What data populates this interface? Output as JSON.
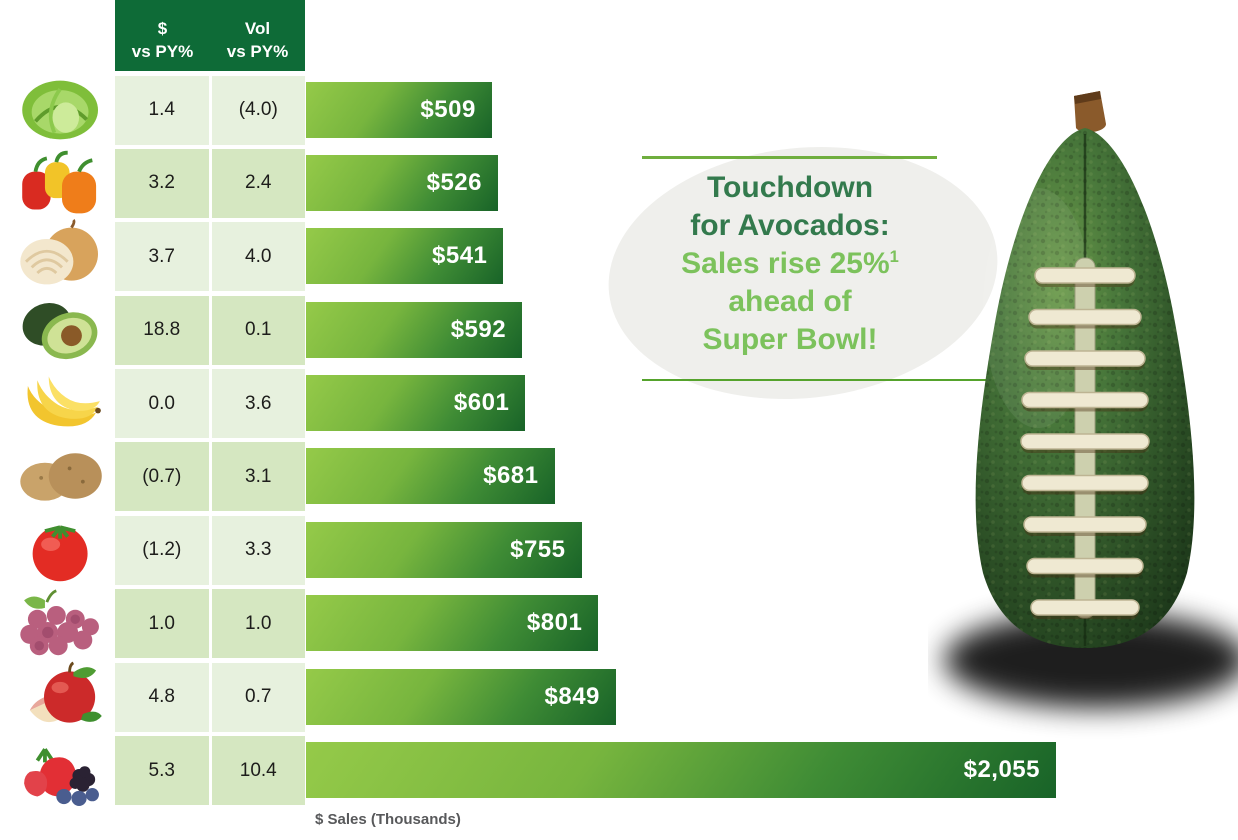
{
  "header": {
    "col1": "$\nvs PY%",
    "col2": "Vol\nvs PY%"
  },
  "rows": [
    {
      "produce": "lettuce",
      "dollar": "1.4",
      "vol": "(4.0)",
      "sales": "$509",
      "value": 509
    },
    {
      "produce": "bell-peppers",
      "dollar": "3.2",
      "vol": "2.4",
      "sales": "$526",
      "value": 526
    },
    {
      "produce": "onion",
      "dollar": "3.7",
      "vol": "4.0",
      "sales": "$541",
      "value": 541
    },
    {
      "produce": "avocado",
      "dollar": "18.8",
      "vol": "0.1",
      "sales": "$592",
      "value": 592
    },
    {
      "produce": "bananas",
      "dollar": "0.0",
      "vol": "3.6",
      "sales": "$601",
      "value": 601
    },
    {
      "produce": "potatoes",
      "dollar": "(0.7)",
      "vol": "3.1",
      "sales": "$681",
      "value": 681
    },
    {
      "produce": "tomato",
      "dollar": "(1.2)",
      "vol": "3.3",
      "sales": "$755",
      "value": 755
    },
    {
      "produce": "grapes",
      "dollar": "1.0",
      "vol": "1.0",
      "sales": "$801",
      "value": 801
    },
    {
      "produce": "apple",
      "dollar": "4.8",
      "vol": "0.7",
      "sales": "$849",
      "value": 849
    },
    {
      "produce": "berries",
      "dollar": "5.3",
      "vol": "10.4",
      "sales": "$2,055",
      "value": 2055
    }
  ],
  "axis_label": "$ Sales (Thousands)",
  "callout": {
    "line1": "Touchdown",
    "line2": "for Avocados:",
    "line3_main": "Sales rise 25%",
    "line3_sup": "1",
    "line4": "ahead of",
    "line5": "Super Bowl!"
  },
  "chart_data": {
    "type": "bar",
    "orientation": "horizontal",
    "title": "",
    "xlabel": "$ Sales (Thousands)",
    "categories": [
      "lettuce",
      "bell peppers",
      "onions",
      "avocados",
      "bananas",
      "potatoes",
      "tomatoes",
      "grapes",
      "apples",
      "berries"
    ],
    "series": [
      {
        "name": "$ Sales (Thousands)",
        "values": [
          509,
          526,
          541,
          592,
          601,
          681,
          755,
          801,
          849,
          2055
        ]
      },
      {
        "name": "$ vs PY%",
        "values": [
          1.4,
          3.2,
          3.7,
          18.8,
          0.0,
          -0.7,
          -1.2,
          1.0,
          4.8,
          5.3
        ]
      },
      {
        "name": "Vol vs PY%",
        "values": [
          -4.0,
          2.4,
          4.0,
          0.1,
          3.6,
          3.1,
          3.3,
          1.0,
          0.7,
          10.4
        ]
      }
    ],
    "bar_labels": [
      "$509",
      "$526",
      "$541",
      "$592",
      "$601",
      "$681",
      "$755",
      "$801",
      "$849",
      "$2,055"
    ],
    "xlim": [
      0,
      2055
    ],
    "grid": false,
    "legend_position": "none",
    "notes": "negative percentages shown in parentheses; bar labels inside right edge of bars"
  },
  "colors": {
    "header_bg": "#0e6b37",
    "row_light": "#e7f1de",
    "row_dark": "#d5e7c1",
    "bar_gradient_start": "#95ca49",
    "bar_gradient_end": "#186328",
    "callout_dark_green": "#337a4d",
    "callout_light_green": "#7cc25c",
    "callout_line_green": "#6fae3e",
    "blob_gray": "#efefec",
    "axis_text": "#58595b"
  }
}
